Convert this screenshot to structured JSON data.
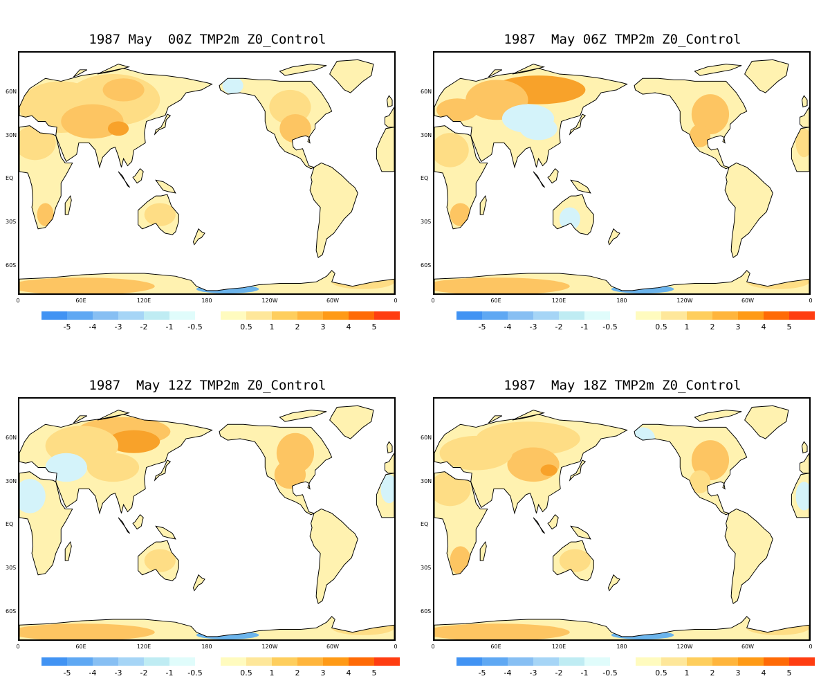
{
  "panels": [
    {
      "title": "1987 May  00Z TMP2m Z0_Control",
      "variant": 0
    },
    {
      "title": "1987  May 06Z TMP2m Z0_Control",
      "variant": 1
    },
    {
      "title": "1987  May 12Z TMP2m Z0_Control",
      "variant": 2
    },
    {
      "title": "1987  May 18Z TMP2m Z0_Control",
      "variant": 3
    }
  ],
  "lat_labels": [
    "60N",
    "30N",
    "EQ",
    "30S",
    "60S"
  ],
  "lon_labels": [
    "0",
    "60E",
    "120E",
    "180",
    "120W",
    "60W",
    "0"
  ],
  "colorbar": {
    "colors": [
      "#4193f3",
      "#5fa8f3",
      "#87bff3",
      "#a6d5f6",
      "#bfecf3",
      "#e0fcfb",
      "#ffffff",
      "#fffbbf",
      "#fee79a",
      "#fece5d",
      "#ffb53c",
      "#ff9a16",
      "#ff6a06",
      "#ff3d11"
    ],
    "labels": [
      "-5",
      "-4",
      "-3",
      "-2",
      "-1",
      "-0.5",
      "0.5",
      "1",
      "2",
      "3",
      "4",
      "5"
    ]
  },
  "fill_colors": {
    "light": "#fff2b0",
    "mid": "#fedd85",
    "warm": "#fdc562",
    "hot": "#f8a22a",
    "cold_light": "#d4f3fa",
    "cold_mid": "#9fd6f2",
    "cold": "#6bb4ec"
  }
}
